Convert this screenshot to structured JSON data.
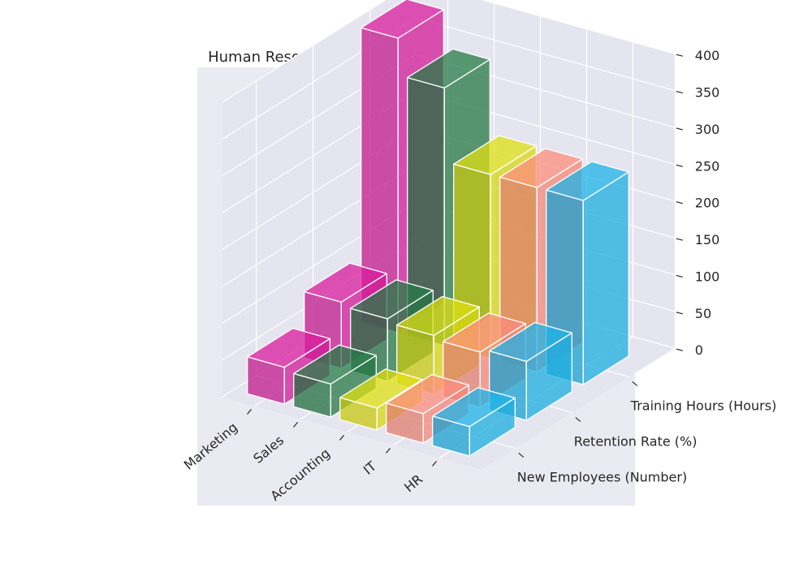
{
  "chart_data": {
    "type": "bar3d",
    "title": "Human Resources and Employee Management Overview",
    "x_categories": [
      "Marketing",
      "Sales",
      "Accounting",
      "IT",
      "HR"
    ],
    "y_categories": [
      "New Employees (Number)",
      "Retention Rate (%)",
      "Training Hours (Hours)"
    ],
    "zticks": [
      0,
      50,
      100,
      150,
      200,
      250,
      300,
      350,
      400
    ],
    "zlim": [
      0,
      400
    ],
    "series": [
      {
        "name": "New Employees (Number)",
        "values": [
          50,
          45,
          30,
          40,
          40
        ]
      },
      {
        "name": "Retention Rate (%)",
        "values": [
          90,
          85,
          80,
          75,
          80
        ]
      },
      {
        "name": "Training Hours (Hours)",
        "values": [
          400,
          350,
          250,
          250,
          250
        ]
      }
    ],
    "colors": [
      "#c2188c",
      "#226e3f",
      "#c7c710",
      "#e27d6f",
      "#1aa0cf"
    ],
    "bar_opacity": 0.75,
    "background_color": "#e5e5f0",
    "grid": true
  }
}
